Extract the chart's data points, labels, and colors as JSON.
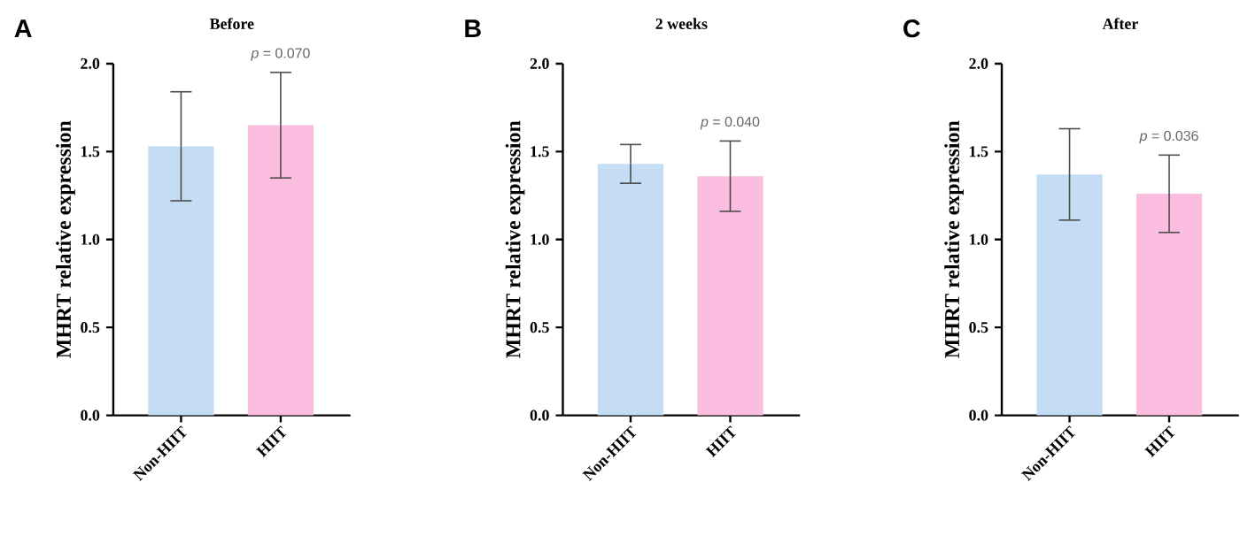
{
  "chart_data": [
    {
      "type": "bar",
      "title": "Before",
      "categories": [
        "Non-HIIT",
        "HIIT"
      ],
      "values": [
        1.53,
        1.65
      ],
      "colors": [
        "#c5dcf5",
        "#fbbde0"
      ],
      "errors": [
        0.31,
        0.3
      ],
      "ylabel": "MHRT relative expression",
      "ylim": [
        0,
        2
      ],
      "yticks": [
        {
          "value": 0,
          "label": "0.0"
        },
        {
          "value": 0.5,
          "label": "0.5"
        },
        {
          "value": 1,
          "label": "1.0"
        },
        {
          "value": 1.5,
          "label": "1.5"
        },
        {
          "value": 2,
          "label": "2.0"
        }
      ],
      "annotations": [
        "A",
        {
          "text": "*p* = 0.070",
          "x": "HIIT",
          "y": 1.95
        }
      ]
    },
    {
      "type": "bar",
      "title": "2 weeks",
      "categories": [
        "Non-HIIT",
        "HIIT"
      ],
      "values": [
        1.43,
        1.36
      ],
      "colors": [
        "#c5dcf5",
        "#fbbde0"
      ],
      "errors": [
        0.11,
        0.2
      ],
      "ylabel": "MHRT relative expression",
      "ylim": [
        0,
        2
      ],
      "yticks": [
        {
          "value": 0,
          "label": "0.0"
        },
        {
          "value": 0.5,
          "label": "0.5"
        },
        {
          "value": 1,
          "label": "1.0"
        },
        {
          "value": 1.5,
          "label": "1.5"
        },
        {
          "value": 2,
          "label": "2.0"
        }
      ],
      "annotations": [
        "B",
        {
          "text": "*p* = 0.040",
          "x": "HIIT",
          "y": 1.56
        }
      ]
    },
    {
      "type": "bar",
      "title": "After",
      "categories": [
        "Non-HIIT",
        "HIIT"
      ],
      "values": [
        1.37,
        1.26
      ],
      "colors": [
        "#c5dcf5",
        "#fbbde0"
      ],
      "errors": [
        0.26,
        0.22
      ],
      "ylabel": "MHRT relative expression",
      "ylim": [
        0,
        2
      ],
      "yticks": [
        {
          "value": 0,
          "label": "0.0"
        },
        {
          "value": 0.5,
          "label": "0.5"
        },
        {
          "value": 1,
          "label": "1.0"
        },
        {
          "value": 1.5,
          "label": "1.5"
        },
        {
          "value": 2,
          "label": "2.0"
        }
      ],
      "annotations": [
        "C",
        {
          "text": "*p* = 0.036",
          "x": "HIIT",
          "y": 1.48
        }
      ]
    }
  ]
}
